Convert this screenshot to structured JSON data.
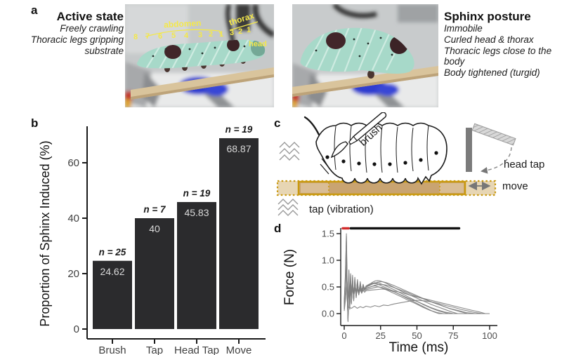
{
  "panels": {
    "a": "a",
    "b": "b",
    "c": "c",
    "d": "d"
  },
  "colors": {
    "bar_fill": "#2b2b2d",
    "bar_value_label": "#d9d9d9",
    "axis": "#1a1a1a",
    "accent_yellow": "#f4e84a",
    "branch_fill": "#c9a471",
    "branch_fill_light": "#d9bd95",
    "branch_ext_fill": "#e7d6b4",
    "branch_border": "#c9990f",
    "stim_red": "#d22b2b",
    "stim_black": "#111111",
    "line_gray": "#7f7f7f",
    "caterpillar_teal": "#a7d9c9",
    "spot_brown": "#42262a"
  },
  "panel_a": {
    "left": {
      "title": "Active state",
      "lines": [
        "Freely crawling",
        "Thoracic legs gripping substrate"
      ],
      "photo_annotations": {
        "abdomen_label": "abdomen",
        "abdomen_numbers": [
          "8",
          "7",
          "6",
          "5",
          "4",
          "3",
          "2",
          "1"
        ],
        "thorax_label": "thorax",
        "thorax_numbers": [
          "3",
          "2",
          "1"
        ],
        "head_label": "head"
      }
    },
    "right": {
      "title": "Sphinx posture",
      "lines": [
        "Immobile",
        "Curled head & thorax",
        "Thoracic legs close to the body",
        "Body tightened (turgid)"
      ]
    }
  },
  "panel_c": {
    "labels": {
      "brush": "brush",
      "head_tap": "head tap",
      "move": "move",
      "tap_vibration": "tap (vibration)"
    }
  },
  "chart_data": [
    {
      "type": "bar",
      "title": "",
      "xlabel": "",
      "ylabel": "Proportion of Sphinx Induced (%)",
      "categories": [
        "Brush",
        "Tap",
        "Head Tap",
        "Move"
      ],
      "values": [
        24.62,
        40,
        45.83,
        68.87
      ],
      "value_labels": [
        "24.62",
        "40",
        "45.83",
        "68.87"
      ],
      "n_labels": [
        "n = 25",
        "n = 7",
        "n = 19",
        "n = 19"
      ],
      "ylim": [
        0,
        72
      ],
      "yticks": [
        0,
        20,
        40,
        60
      ],
      "grid": false,
      "legend": "none"
    },
    {
      "type": "line",
      "title": "",
      "xlabel": "Time (ms)",
      "ylabel": "Force (N)",
      "xlim": [
        -5,
        105
      ],
      "ylim": [
        -0.2,
        1.65
      ],
      "xticks": [
        0,
        25,
        50,
        75,
        100
      ],
      "yticks": [
        0.0,
        0.5,
        1.0,
        1.5
      ],
      "ytick_labels": [
        "0.0",
        "0.5",
        "1.0",
        "1.5"
      ],
      "grid": false,
      "legend": "none",
      "annotation_bars": [
        {
          "name": "stimulus-bar-red",
          "color": "#d22b2b",
          "x_start": -1,
          "x_end": 3,
          "y": 1.6
        },
        {
          "name": "stimulus-bar-black",
          "color": "#111111",
          "x_start": 4.5,
          "x_end": 79,
          "y": 1.6
        }
      ],
      "series": [
        {
          "name": "trial-1",
          "x": [
            0,
            0.8,
            1.5,
            2,
            2.6,
            3.2,
            3.8,
            4.4,
            5,
            5.7,
            6.5,
            7.3,
            8.2,
            9.1,
            10,
            11,
            12,
            13,
            14,
            15,
            17,
            19,
            21,
            23,
            25,
            28,
            31,
            35,
            40,
            45,
            50,
            55,
            60,
            65,
            70,
            74,
            78,
            100
          ],
          "y": [
            0.2,
            0.7,
            1.5,
            0.6,
            -0.15,
            0.8,
            0.1,
            0.75,
            0.2,
            0.72,
            0.26,
            0.68,
            0.3,
            0.64,
            0.35,
            0.6,
            0.4,
            0.55,
            0.45,
            0.5,
            0.54,
            0.58,
            0.61,
            0.62,
            0.61,
            0.58,
            0.54,
            0.48,
            0.41,
            0.35,
            0.29,
            0.23,
            0.17,
            0.12,
            0.07,
            0.03,
            0,
            0
          ]
        },
        {
          "name": "trial-2",
          "x": [
            0,
            0.8,
            1.5,
            2,
            2.6,
            3.2,
            3.8,
            4.4,
            5,
            5.7,
            6.5,
            7.3,
            8.2,
            9.1,
            10,
            11,
            12,
            13,
            14,
            15,
            17,
            20,
            23,
            26,
            29,
            33,
            38,
            43,
            48,
            53,
            58,
            63,
            68,
            73,
            78,
            82,
            85,
            100
          ],
          "y": [
            0.15,
            0.6,
            1.35,
            0.5,
            -0.1,
            0.75,
            0.15,
            0.7,
            0.22,
            0.66,
            0.28,
            0.63,
            0.33,
            0.6,
            0.38,
            0.56,
            0.42,
            0.52,
            0.46,
            0.5,
            0.52,
            0.56,
            0.59,
            0.6,
            0.58,
            0.54,
            0.48,
            0.42,
            0.36,
            0.3,
            0.24,
            0.19,
            0.14,
            0.09,
            0.05,
            0.02,
            0,
            0
          ]
        },
        {
          "name": "trial-3",
          "x": [
            0,
            0.8,
            1.5,
            2,
            2.6,
            3.2,
            3.8,
            4.4,
            5,
            5.7,
            6.5,
            7.3,
            8.2,
            9.1,
            10,
            11,
            12,
            13,
            14,
            15,
            17,
            19,
            21,
            24,
            27,
            31,
            35,
            40,
            45,
            50,
            55,
            60,
            65,
            69,
            72,
            100
          ],
          "y": [
            0.1,
            0.55,
            1.25,
            0.45,
            -0.08,
            0.7,
            0.18,
            0.66,
            0.25,
            0.62,
            0.3,
            0.6,
            0.35,
            0.57,
            0.4,
            0.54,
            0.44,
            0.52,
            0.47,
            0.5,
            0.53,
            0.56,
            0.58,
            0.57,
            0.54,
            0.49,
            0.44,
            0.37,
            0.3,
            0.23,
            0.16,
            0.1,
            0.05,
            0.02,
            0,
            0
          ]
        },
        {
          "name": "trial-4",
          "x": [
            0,
            0.8,
            1.5,
            2,
            2.6,
            3.2,
            3.8,
            4.4,
            5,
            5.7,
            6.5,
            7.3,
            8.2,
            9.1,
            10,
            11,
            12,
            13,
            14,
            15,
            18,
            21,
            25,
            28,
            32,
            37,
            42,
            48,
            54,
            60,
            66,
            72,
            78,
            84,
            90,
            100
          ],
          "y": [
            0.18,
            0.62,
            1.2,
            0.5,
            -0.05,
            0.68,
            0.2,
            0.64,
            0.27,
            0.6,
            0.32,
            0.58,
            0.36,
            0.55,
            0.4,
            0.52,
            0.43,
            0.5,
            0.46,
            0.48,
            0.5,
            0.53,
            0.55,
            0.54,
            0.51,
            0.46,
            0.41,
            0.34,
            0.28,
            0.22,
            0.16,
            0.1,
            0.06,
            0.02,
            0,
            0
          ]
        },
        {
          "name": "trial-5",
          "x": [
            0,
            0.8,
            1.5,
            2,
            2.6,
            3.2,
            3.8,
            4.4,
            5,
            5.7,
            6.5,
            7.3,
            8.2,
            9.1,
            10,
            11,
            12,
            13,
            14,
            15,
            17,
            19,
            21,
            24,
            27,
            31,
            35,
            39,
            44,
            49,
            54,
            59,
            64,
            68,
            100
          ],
          "y": [
            0.12,
            0.5,
            1.1,
            0.4,
            -0.12,
            0.65,
            0.15,
            0.62,
            0.22,
            0.58,
            0.28,
            0.56,
            0.33,
            0.53,
            0.38,
            0.5,
            0.42,
            0.48,
            0.45,
            0.47,
            0.49,
            0.51,
            0.52,
            0.5,
            0.47,
            0.42,
            0.37,
            0.32,
            0.25,
            0.19,
            0.12,
            0.06,
            0.02,
            0,
            0
          ]
        },
        {
          "name": "trial-6",
          "x": [
            0,
            0.8,
            1.5,
            2,
            2.6,
            3.2,
            3.8,
            4.4,
            5,
            5.7,
            6.5,
            7.3,
            8.2,
            9.1,
            10,
            11,
            12,
            13,
            14,
            15,
            18,
            21,
            23,
            26,
            30,
            34,
            39,
            44,
            49,
            54,
            59,
            64,
            69,
            75,
            100
          ],
          "y": [
            0.08,
            0.45,
            1.0,
            0.35,
            -0.06,
            0.6,
            0.2,
            0.58,
            0.25,
            0.55,
            0.3,
            0.52,
            0.34,
            0.5,
            0.37,
            0.48,
            0.4,
            0.46,
            0.43,
            0.45,
            0.47,
            0.49,
            0.5,
            0.49,
            0.45,
            0.41,
            0.35,
            0.29,
            0.24,
            0.18,
            0.12,
            0.07,
            0.03,
            0,
            0
          ]
        },
        {
          "name": "trial-7",
          "x": [
            0,
            0.8,
            1.5,
            2,
            2.6,
            3.2,
            3.8,
            4.4,
            5,
            5.7,
            6.5,
            7.3,
            8.2,
            9.1,
            10,
            11,
            12,
            13,
            14,
            15,
            18,
            22,
            26,
            30,
            35,
            40,
            46,
            52,
            58,
            64,
            70,
            76,
            82,
            88,
            93,
            97,
            100
          ],
          "y": [
            0.14,
            0.48,
            0.95,
            0.3,
            0,
            0.55,
            0.22,
            0.52,
            0.27,
            0.5,
            0.3,
            0.48,
            0.33,
            0.46,
            0.36,
            0.45,
            0.38,
            0.44,
            0.4,
            0.43,
            0.44,
            0.45,
            0.46,
            0.45,
            0.42,
            0.39,
            0.34,
            0.3,
            0.26,
            0.22,
            0.18,
            0.14,
            0.1,
            0.06,
            0.03,
            0,
            0
          ]
        },
        {
          "name": "trial-8",
          "x": [
            0,
            0.8,
            1.5,
            2,
            2.6,
            3.2,
            3.8,
            4.4,
            5,
            5.7,
            6.5,
            7.3,
            8.2,
            9.1,
            10,
            11,
            12,
            13,
            14,
            15,
            17,
            19,
            22,
            25,
            29,
            33,
            38,
            43,
            48,
            53,
            58,
            62,
            65,
            100
          ],
          "y": [
            0.22,
            0.75,
            1.45,
            0.55,
            -0.14,
            0.82,
            0.08,
            0.72,
            0.18,
            0.68,
            0.24,
            0.64,
            0.3,
            0.6,
            0.36,
            0.57,
            0.42,
            0.54,
            0.46,
            0.52,
            0.55,
            0.57,
            0.56,
            0.53,
            0.48,
            0.43,
            0.36,
            0.29,
            0.22,
            0.15,
            0.08,
            0.03,
            0,
            0
          ]
        },
        {
          "name": "trial-9",
          "x": [
            0,
            1,
            2,
            3,
            5,
            7,
            9,
            11,
            13,
            15,
            18,
            21,
            24,
            27,
            30,
            34,
            38,
            42,
            46,
            50,
            55,
            60,
            65,
            70,
            75,
            80,
            85,
            90,
            95,
            100
          ],
          "y": [
            0.05,
            0.3,
            0.6,
            0.12,
            0.1,
            0.14,
            0.1,
            0.13,
            0.11,
            0.14,
            0.12,
            0.15,
            0.13,
            0.16,
            0.15,
            0.18,
            0.2,
            0.22,
            0.24,
            0.25,
            0.24,
            0.22,
            0.19,
            0.15,
            0.12,
            0.08,
            0.05,
            0.02,
            0,
            0
          ]
        }
      ]
    }
  ]
}
